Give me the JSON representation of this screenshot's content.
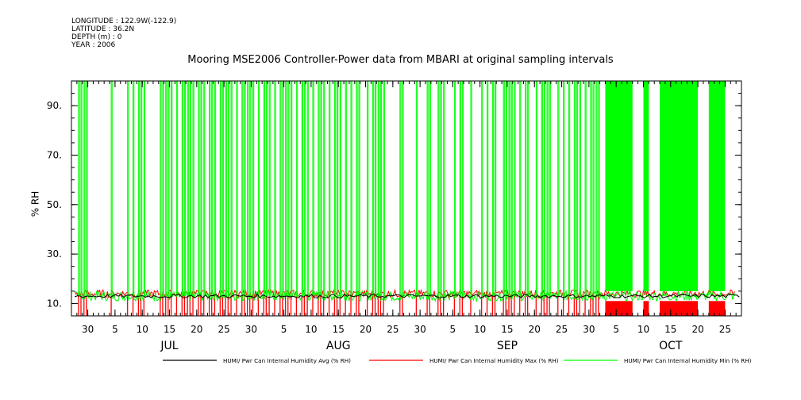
{
  "meta": {
    "longitude": "LONGITUDE : 122.9W(-122.9)",
    "latitude": "LATITUDE : 36.2N",
    "depth": "DEPTH (m) : 0",
    "year": "YEAR : 2006"
  },
  "chart_data": {
    "type": "line",
    "title": "Mooring MSE2006 Controller-Power data from MBARI at original sampling intervals",
    "ylabel": "% RH",
    "xlabel": "",
    "ylim": [
      5,
      100
    ],
    "y_ticks": [
      10,
      30,
      50,
      70,
      90
    ],
    "y_tick_labels": [
      "10.",
      "30.",
      "50.",
      "70.",
      "90."
    ],
    "x_range": [
      "2006-06-27",
      "2006-10-28"
    ],
    "x_day_ticks": [
      {
        "date": "2006-06-30",
        "label": "30"
      },
      {
        "date": "2006-07-05",
        "label": "5"
      },
      {
        "date": "2006-07-10",
        "label": "10"
      },
      {
        "date": "2006-07-15",
        "label": "15"
      },
      {
        "date": "2006-07-20",
        "label": "20"
      },
      {
        "date": "2006-07-25",
        "label": "25"
      },
      {
        "date": "2006-07-30",
        "label": "30"
      },
      {
        "date": "2006-08-05",
        "label": "5"
      },
      {
        "date": "2006-08-10",
        "label": "10"
      },
      {
        "date": "2006-08-15",
        "label": "15"
      },
      {
        "date": "2006-08-20",
        "label": "20"
      },
      {
        "date": "2006-08-25",
        "label": "25"
      },
      {
        "date": "2006-08-30",
        "label": "30"
      },
      {
        "date": "2006-09-05",
        "label": "5"
      },
      {
        "date": "2006-09-10",
        "label": "10"
      },
      {
        "date": "2006-09-15",
        "label": "15"
      },
      {
        "date": "2006-09-20",
        "label": "20"
      },
      {
        "date": "2006-09-25",
        "label": "25"
      },
      {
        "date": "2006-09-30",
        "label": "30"
      },
      {
        "date": "2006-10-05",
        "label": "5"
      },
      {
        "date": "2006-10-10",
        "label": "10"
      },
      {
        "date": "2006-10-15",
        "label": "15"
      },
      {
        "date": "2006-10-20",
        "label": "20"
      },
      {
        "date": "2006-10-25",
        "label": "25"
      }
    ],
    "x_month_labels": [
      {
        "date": "2006-07-15",
        "label": "JUL"
      },
      {
        "date": "2006-08-15",
        "label": "AUG"
      },
      {
        "date": "2006-09-15",
        "label": "SEP"
      },
      {
        "date": "2006-10-15",
        "label": "OCT"
      }
    ],
    "series": [
      {
        "name": "HUMI/ Pwr Can Internal Humidity Avg (% RH)",
        "color": "#000000",
        "typical_value": 13
      },
      {
        "name": "HUMI/ Pwr Can Internal Humidity Max (% RH)",
        "color": "#ff0000",
        "typical_value": 14,
        "dropout_value": 5
      },
      {
        "name": "HUMI/ Pwr Can Internal Humidity Min (% RH)",
        "color": "#00ff00",
        "typical_value": 13,
        "spike_value": 100
      }
    ],
    "spike_dates": [
      "2006-06-28",
      "2006-06-29",
      "2006-07-04",
      "2006-07-07",
      "2006-07-08",
      "2006-07-09",
      "2006-07-10",
      "2006-07-13",
      "2006-07-14",
      "2006-07-15",
      "2006-07-16",
      "2006-07-17",
      "2006-07-18",
      "2006-07-19",
      "2006-07-20",
      "2006-07-21",
      "2006-07-22",
      "2006-07-23",
      "2006-07-24",
      "2006-07-25",
      "2006-07-26",
      "2006-07-27",
      "2006-07-28",
      "2006-07-29",
      "2006-07-30",
      "2006-07-31",
      "2006-08-01",
      "2006-08-02",
      "2006-08-03",
      "2006-08-04",
      "2006-08-05",
      "2006-08-06",
      "2006-08-07",
      "2006-08-08",
      "2006-08-09",
      "2006-08-10",
      "2006-08-11",
      "2006-08-12",
      "2006-08-13",
      "2006-08-14",
      "2006-08-15",
      "2006-08-16",
      "2006-08-17",
      "2006-08-18",
      "2006-08-20",
      "2006-08-21",
      "2006-08-22",
      "2006-08-23",
      "2006-08-26",
      "2006-08-29",
      "2006-08-31",
      "2006-09-02",
      "2006-09-03",
      "2006-09-05",
      "2006-09-06",
      "2006-09-08",
      "2006-09-10",
      "2006-09-11",
      "2006-09-12",
      "2006-09-14",
      "2006-09-15",
      "2006-09-16",
      "2006-09-17",
      "2006-09-18",
      "2006-09-20",
      "2006-09-21",
      "2006-09-22",
      "2006-09-24",
      "2006-09-25",
      "2006-09-26",
      "2006-09-27",
      "2006-09-28",
      "2006-09-29",
      "2006-09-30",
      "2006-10-01"
    ],
    "dense_spike_periods": [
      [
        "2006-10-03",
        "2006-10-08"
      ],
      [
        "2006-10-10",
        "2006-10-11"
      ],
      [
        "2006-10-13",
        "2006-10-20"
      ],
      [
        "2006-10-22",
        "2006-10-25"
      ]
    ],
    "grid": false,
    "legend_position": "bottom"
  }
}
